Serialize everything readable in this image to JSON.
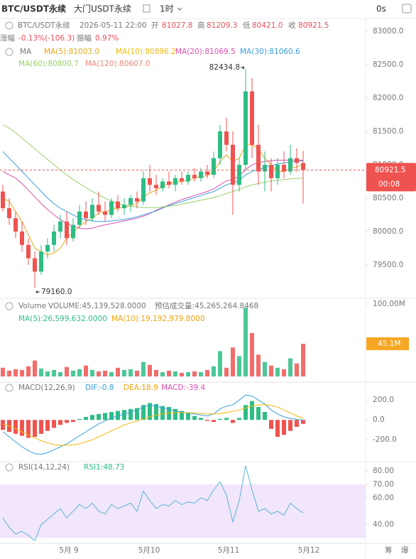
{
  "header": {
    "symbol": "BTC/USDT永续",
    "alt_symbol": "大门USDT永续",
    "interval": "1时",
    "timer": "0s"
  },
  "price_legend": {
    "symbol": "BTC/USDT永续",
    "time": "2026-05-11 22:00",
    "open_label": "开",
    "open": "81027.8",
    "high_label": "高",
    "high": "81209.3",
    "low_label": "低",
    "low": "80421.0",
    "close_label": "收",
    "close": "80921.5",
    "change_label": "涨幅",
    "change": "-0.13%(-106.3)",
    "amplitude_label": "振幅",
    "amplitude": "0.97%",
    "ma_title": "MA",
    "ma": [
      {
        "text": "MA(5):81003.0",
        "color": "#e6a817"
      },
      {
        "text": "MA(10):80896.2",
        "color": "#f0b90b"
      },
      {
        "text": "MA(20):81069.5",
        "color": "#d94fb0"
      },
      {
        "text": "MA(30):81060.6",
        "color": "#3aa0d8"
      },
      {
        "text": "MA(60):80800.7",
        "color": "#9ccf6e"
      },
      {
        "text": "MA(120):80607.0",
        "color": "#e88a7f"
      }
    ]
  },
  "volume_legend": {
    "title": "Volume",
    "volume": "VOLUME:45,139,528.0000",
    "estimate": "预估成交量:45,265,264.8468",
    "ma5": "MA(5):26,599,632.0000",
    "ma10": "MA(10):19,192,979.8000"
  },
  "macd_legend": {
    "title": "MACD(12,26,9)",
    "dif": "DIF:-0.8",
    "dea": "DEA:18.9",
    "macd": "MACD:-39.4"
  },
  "rsi_legend": {
    "title": "RSI(14,12,24)",
    "rsi1": "RSI1:48.73"
  },
  "time_labels": [
    "5月 9",
    "5月10",
    "5月11",
    "5月12"
  ],
  "footer": {
    "chips": "筹",
    "burst": "爆"
  },
  "chart_data": [
    {
      "type": "candlestick",
      "up_color": "#2ebd85",
      "down_color": "#ef5350",
      "ylim": [
        79000,
        83150
      ],
      "yticks": [
        {
          "value": 79500,
          "label": "79500.0"
        },
        {
          "value": 80000,
          "label": "80000.0"
        },
        {
          "value": 80500,
          "label": "80500.0"
        },
        {
          "value": 81000,
          "label": "81000.0"
        },
        {
          "value": 81500,
          "label": "81500.0"
        },
        {
          "value": 82000,
          "label": "82000.0"
        },
        {
          "value": 82500,
          "label": "82500.0"
        },
        {
          "value": 83000,
          "label": "83000.0"
        }
      ],
      "open": [
        80600,
        80350,
        80200,
        80000,
        79800,
        79600,
        79400,
        79700,
        79800,
        80000,
        80150,
        79900,
        80100,
        80300,
        80200,
        80400,
        80300,
        80250,
        80450,
        80350,
        80400,
        80500,
        80450,
        80800,
        80700,
        80650,
        80750,
        80700,
        80800,
        80750,
        80850,
        80800,
        80900,
        80850,
        81100,
        81500,
        81300,
        80700,
        81000,
        82100,
        81300,
        80900,
        81000,
        80800,
        81000,
        80900,
        81100,
        81027.8
      ],
      "high": [
        80700,
        80500,
        80300,
        80150,
        79900,
        79700,
        79800,
        79900,
        80100,
        80250,
        80300,
        80200,
        80400,
        80450,
        80500,
        80600,
        80450,
        80500,
        80550,
        80500,
        80550,
        80600,
        80900,
        81000,
        80850,
        80800,
        80900,
        80850,
        80900,
        80900,
        80950,
        80950,
        81000,
        81200,
        81600,
        81700,
        81500,
        81100,
        82434.8,
        82300,
        81600,
        81200,
        81100,
        81100,
        81200,
        81300,
        81250,
        81209.3
      ],
      "low": [
        80300,
        80100,
        79900,
        79700,
        79500,
        79160,
        79350,
        79600,
        79700,
        79900,
        79800,
        79850,
        80050,
        80100,
        80150,
        80250,
        80150,
        80200,
        80300,
        80250,
        80300,
        80350,
        80400,
        80600,
        80550,
        80600,
        80650,
        80600,
        80700,
        80700,
        80750,
        80750,
        80800,
        80800,
        81000,
        81200,
        80250,
        80600,
        80900,
        81100,
        80700,
        80600,
        80600,
        80700,
        80800,
        80850,
        80900,
        80421
      ],
      "close": [
        80350,
        80200,
        80000,
        79800,
        79600,
        79400,
        79700,
        79800,
        80000,
        80150,
        79900,
        80100,
        80300,
        80200,
        80400,
        80300,
        80250,
        80450,
        80350,
        80400,
        80500,
        80450,
        80800,
        80700,
        80650,
        80750,
        80700,
        80800,
        80750,
        80850,
        80800,
        80900,
        80850,
        81100,
        81500,
        81300,
        80700,
        81000,
        82100,
        81300,
        80900,
        81000,
        80800,
        81000,
        80900,
        81100,
        81027.8,
        80921.5
      ],
      "high_mark": 82434.8,
      "low_mark": 79160,
      "low_mark_label": "79160.0",
      "last_price": 80921.5,
      "countdown": "00:08",
      "series": [
        {
          "name": "MA(5)",
          "color": "#e6a817",
          "values": [
            80500,
            80450,
            80300,
            80150,
            79950,
            79750,
            79700,
            79650,
            79680,
            79750,
            79900,
            79980,
            80080,
            80150,
            80200,
            80280,
            80300,
            80330,
            80350,
            80360,
            80390,
            80420,
            80520,
            80580,
            80620,
            80680,
            80720,
            80740,
            80750,
            80770,
            80800,
            80820,
            80840,
            80900,
            81050,
            81150,
            81050,
            81100,
            81300,
            81300,
            81240,
            81100,
            81000,
            80900,
            80900,
            80950,
            80970,
            81003
          ]
        },
        {
          "name": "MA(20)",
          "color": "#d94fb0",
          "values": [
            80900,
            80850,
            80800,
            80720,
            80620,
            80520,
            80420,
            80330,
            80250,
            80180,
            80120,
            80080,
            80050,
            80040,
            80050,
            80080,
            80100,
            80120,
            80140,
            80160,
            80180,
            80200,
            80230,
            80270,
            80320,
            80360,
            80400,
            80440,
            80480,
            80510,
            80540,
            80570,
            80600,
            80640,
            80700,
            80760,
            80780,
            80830,
            80930,
            81000,
            81030,
            81050,
            81060,
            81070,
            81070,
            81070,
            81070,
            81069.5
          ]
        },
        {
          "name": "MA(30)",
          "color": "#3aa0d8",
          "values": [
            81200,
            81100,
            81000,
            80900,
            80800,
            80700,
            80600,
            80500,
            80420,
            80350,
            80300,
            80250,
            80200,
            80180,
            80160,
            80150,
            80150,
            80160,
            80170,
            80180,
            80200,
            80220,
            80250,
            80280,
            80310,
            80350,
            80390,
            80420,
            80450,
            80480,
            80510,
            80540,
            80570,
            80600,
            80650,
            80700,
            80730,
            80770,
            80850,
            80900,
            80930,
            80960,
            80990,
            81010,
            81030,
            81040,
            81050,
            81060.6
          ]
        },
        {
          "name": "MA(60)",
          "color": "#9ccf6e",
          "values": [
            81600,
            81550,
            81480,
            81400,
            81320,
            81240,
            81160,
            81080,
            81000,
            80920,
            80850,
            80780,
            80720,
            80660,
            80600,
            80550,
            80500,
            80460,
            80420,
            80400,
            80380,
            80370,
            80360,
            80360,
            80360,
            80370,
            80380,
            80390,
            80410,
            80430,
            80450,
            80470,
            80490,
            80510,
            80540,
            80570,
            80600,
            80630,
            80670,
            80700,
            80720,
            80740,
            80760,
            80770,
            80780,
            80790,
            80795,
            80800.7
          ]
        }
      ]
    },
    {
      "type": "volume",
      "ylim": [
        0,
        100000000
      ],
      "yticks": [
        {
          "value": 100000000,
          "label": "100.00M"
        }
      ],
      "values": [
        12000000,
        8000000,
        10000000,
        9000000,
        14000000,
        22000000,
        11000000,
        7000000,
        9000000,
        6000000,
        13000000,
        8000000,
        10000000,
        15000000,
        9000000,
        7000000,
        8000000,
        6000000,
        12000000,
        9000000,
        10000000,
        8000000,
        20000000,
        16000000,
        9000000,
        6000000,
        8000000,
        7000000,
        5000000,
        6000000,
        7000000,
        6000000,
        9000000,
        14000000,
        35000000,
        12000000,
        40000000,
        28000000,
        95000000,
        60000000,
        30000000,
        20000000,
        15000000,
        12000000,
        10000000,
        25000000,
        18000000,
        45139528
      ],
      "current": 45139528,
      "current_label": "45.1M"
    },
    {
      "type": "macd",
      "ylim": [
        -420,
        380
      ],
      "yticks": [
        {
          "value": 200,
          "label": "200.0"
        },
        {
          "value": 0,
          "label": "0.0"
        },
        {
          "value": -200,
          "label": "-200.0"
        }
      ],
      "values": [
        -100,
        -120,
        -140,
        -160,
        -180,
        -170,
        -140,
        -110,
        -80,
        -50,
        -30,
        -20,
        10,
        30,
        50,
        60,
        70,
        80,
        90,
        100,
        110,
        120,
        150,
        170,
        160,
        140,
        130,
        110,
        90,
        70,
        40,
        20,
        -10,
        -20,
        10,
        20,
        -30,
        20,
        150,
        190,
        130,
        80,
        -90,
        -170,
        -150,
        -110,
        -70,
        -39.4
      ],
      "series": [
        {
          "name": "DIF",
          "color": "#3aa0d8",
          "values": [
            -120,
            -170,
            -220,
            -270,
            -310,
            -340,
            -345,
            -330,
            -300,
            -270,
            -240,
            -200,
            -160,
            -120,
            -80,
            -40,
            -10,
            20,
            40,
            60,
            80,
            100,
            130,
            150,
            140,
            120,
            110,
            90,
            80,
            70,
            60,
            50,
            40,
            60,
            110,
            140,
            150,
            200,
            250,
            240,
            200,
            160,
            100,
            60,
            30,
            15,
            5,
            -0.8
          ]
        },
        {
          "name": "DEA",
          "color": "#f0b90b",
          "values": [
            -40,
            -60,
            -90,
            -120,
            -150,
            -180,
            -210,
            -230,
            -250,
            -255,
            -255,
            -250,
            -240,
            -220,
            -200,
            -170,
            -140,
            -110,
            -80,
            -50,
            -30,
            -10,
            10,
            30,
            50,
            60,
            70,
            75,
            75,
            72,
            70,
            65,
            60,
            60,
            65,
            75,
            85,
            100,
            120,
            140,
            150,
            155,
            145,
            130,
            100,
            70,
            40,
            18.9
          ]
        }
      ]
    },
    {
      "type": "rsi",
      "ylim": [
        26,
        87
      ],
      "band": [
        30,
        70
      ],
      "band_color": "#f1e6fb",
      "yticks": [
        {
          "value": 80,
          "label": "80.00"
        },
        {
          "value": 70,
          "label": "70.00"
        },
        {
          "value": 60,
          "label": "60.00"
        },
        {
          "value": 40,
          "label": "40.00"
        }
      ],
      "series": [
        {
          "name": "RSI1",
          "color": "#5bb3d6",
          "values": [
            45,
            38,
            33,
            35,
            32,
            28,
            40,
            44,
            48,
            52,
            45,
            50,
            55,
            52,
            56,
            50,
            48,
            55,
            52,
            54,
            56,
            50,
            65,
            58,
            52,
            55,
            54,
            58,
            55,
            57,
            56,
            60,
            58,
            66,
            72,
            62,
            42,
            58,
            84,
            66,
            50,
            52,
            48,
            50,
            47,
            56,
            52,
            48.73
          ]
        }
      ]
    }
  ]
}
